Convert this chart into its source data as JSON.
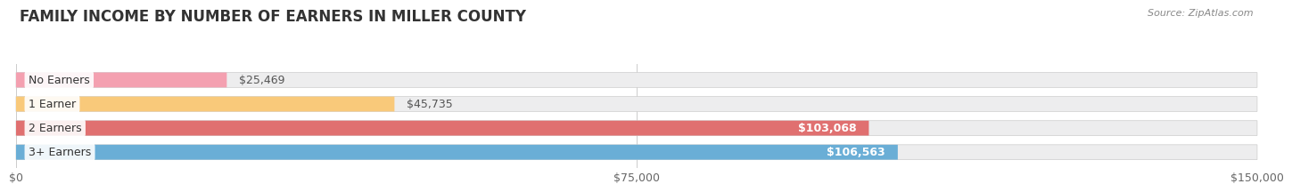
{
  "title": "FAMILY INCOME BY NUMBER OF EARNERS IN MILLER COUNTY",
  "source": "Source: ZipAtlas.com",
  "categories": [
    "No Earners",
    "1 Earner",
    "2 Earners",
    "3+ Earners"
  ],
  "values": [
    25469,
    45735,
    103068,
    106563
  ],
  "bar_colors": [
    "#f4a0b0",
    "#f9c97a",
    "#e07070",
    "#6aaed6"
  ],
  "bar_bg_color": "#ededee",
  "label_colors": [
    "#555555",
    "#555555",
    "#ffffff",
    "#ffffff"
  ],
  "xlim": [
    0,
    150000
  ],
  "xticks": [
    0,
    75000,
    150000
  ],
  "xtick_labels": [
    "$0",
    "$75,000",
    "$150,000"
  ],
  "background_color": "#ffffff",
  "title_fontsize": 12,
  "bar_height": 0.62,
  "label_fontsize": 9,
  "category_fontsize": 9
}
